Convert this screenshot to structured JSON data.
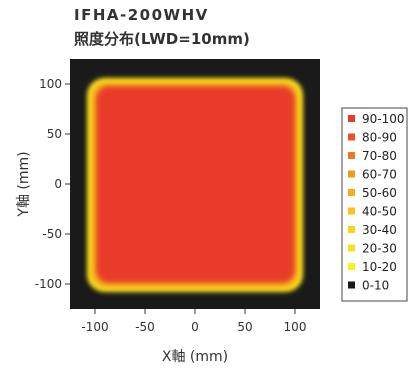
{
  "title": "IFHA-200WHV",
  "subtitle": "照度分布(LWD=10mm)",
  "chart_data": {
    "type": "heatmap",
    "title": "IFHA-200WHV",
    "subtitle": "照度分布(LWD=10mm)",
    "xlabel": "X軸 (mm)",
    "ylabel": "Y軸 (mm)",
    "xlim": [
      -125,
      125
    ],
    "ylim": [
      -125,
      125
    ],
    "xticks": [
      -100,
      -50,
      0,
      50,
      100
    ],
    "yticks": [
      100,
      50,
      0,
      -50,
      -100
    ],
    "xtick_labels": [
      "-100",
      "-50",
      "0",
      "50",
      "100"
    ],
    "ytick_labels": [
      "100",
      "50",
      "0",
      "-50",
      "-100"
    ],
    "grid": false,
    "legend_position": "right",
    "legend": [
      {
        "label": "90-100",
        "color": "#e83a2a"
      },
      {
        "label": "80-90",
        "color": "#ea5127"
      },
      {
        "label": "70-80",
        "color": "#ee7a1f"
      },
      {
        "label": "60-70",
        "color": "#f29a1c"
      },
      {
        "label": "50-60",
        "color": "#f5b11c"
      },
      {
        "label": "40-50",
        "color": "#f7c31c"
      },
      {
        "label": "30-40",
        "color": "#f8d51c"
      },
      {
        "label": "20-30",
        "color": "#f9e21c"
      },
      {
        "label": "10-20",
        "color": "#fbf01c"
      },
      {
        "label": "0-10",
        "color": "#1a1a1a"
      }
    ],
    "regions": [
      {
        "range": "0-10",
        "x": [
          -125,
          125
        ],
        "y": [
          -125,
          125
        ]
      },
      {
        "range": "20-30",
        "x": [
          -108,
          108
        ],
        "y": [
          -108,
          106
        ]
      },
      {
        "range": "50-60",
        "x": [
          -104,
          104
        ],
        "y": [
          -104,
          102
        ]
      },
      {
        "range": "80-90",
        "x": [
          -99,
          100
        ],
        "y": [
          -99,
          98
        ]
      },
      {
        "range": "90-100",
        "x": [
          -96,
          97
        ],
        "y": [
          -96,
          95
        ]
      }
    ]
  }
}
